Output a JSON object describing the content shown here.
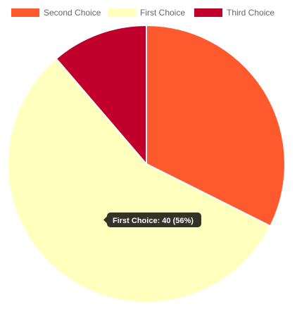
{
  "chart_data": {
    "type": "pie",
    "categories": [
      "Second Choice",
      "First Choice",
      "Third Choice"
    ],
    "values": [
      23,
      40,
      8
    ],
    "colors": [
      "#FF5A2E",
      "#FFFFBE",
      "#C0002B"
    ],
    "legend_position": "top",
    "tooltip": {
      "category": "First Choice",
      "text": "First Choice: 40 (56%)"
    }
  }
}
